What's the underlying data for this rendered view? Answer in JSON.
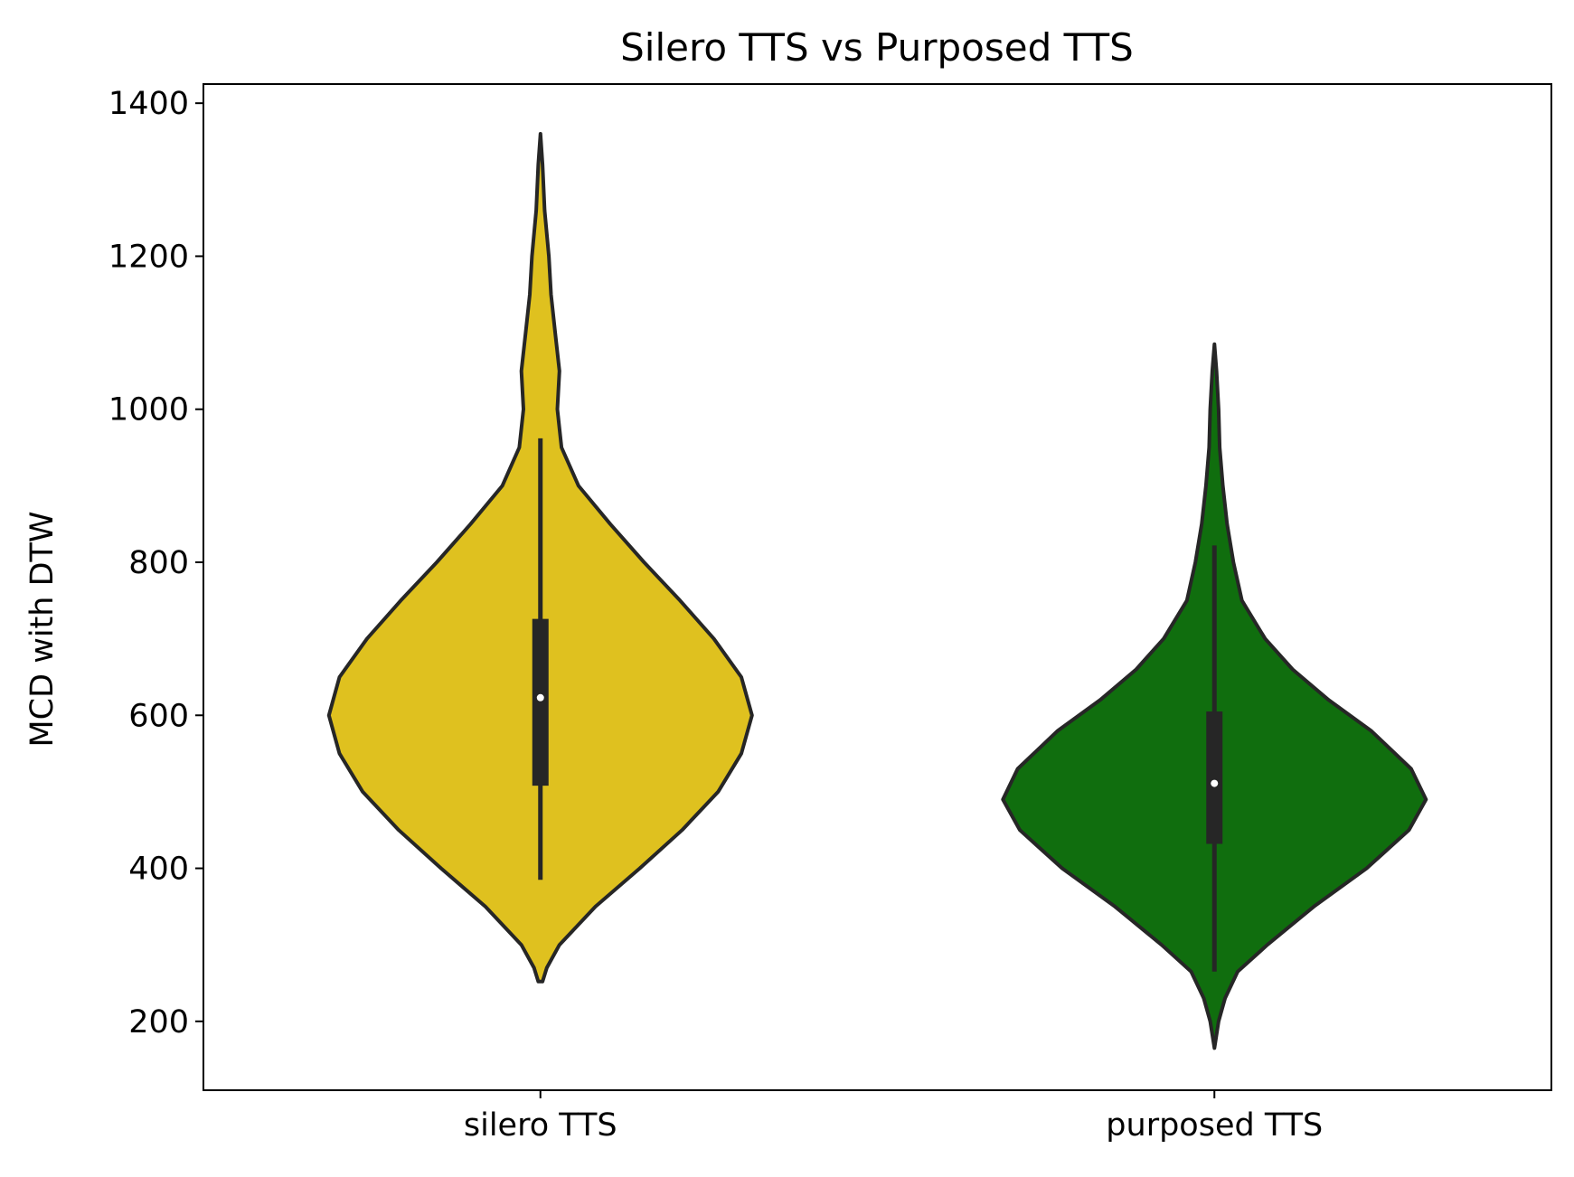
{
  "chart_data": {
    "type": "violin",
    "title": "Silero TTS vs Purposed TTS",
    "xlabel": "",
    "ylabel": "MCD with DTW",
    "ylim": [
      110,
      1425
    ],
    "yticks": [
      "200",
      "400",
      "600",
      "800",
      "1000",
      "1200",
      "1400"
    ],
    "categories": [
      "silero TTS",
      "purposed TTS"
    ],
    "grid": false,
    "legend": "none",
    "series": [
      {
        "category": "silero TTS",
        "color": "#dfc11f",
        "min": 252,
        "max": 1360,
        "whisker_low": 385,
        "whisker_high": 962,
        "q1": 508,
        "median": 623,
        "q3": 726,
        "density": [
          [
            252,
            0.01
          ],
          [
            270,
            0.03
          ],
          [
            300,
            0.09
          ],
          [
            350,
            0.26
          ],
          [
            400,
            0.47
          ],
          [
            450,
            0.67
          ],
          [
            500,
            0.84
          ],
          [
            550,
            0.95
          ],
          [
            600,
            1.0
          ],
          [
            650,
            0.95
          ],
          [
            700,
            0.82
          ],
          [
            750,
            0.66
          ],
          [
            800,
            0.49
          ],
          [
            850,
            0.33
          ],
          [
            900,
            0.18
          ],
          [
            950,
            0.1
          ],
          [
            1000,
            0.08
          ],
          [
            1050,
            0.09
          ],
          [
            1100,
            0.07
          ],
          [
            1150,
            0.05
          ],
          [
            1200,
            0.04
          ],
          [
            1260,
            0.02
          ],
          [
            1320,
            0.01
          ],
          [
            1360,
            0.0
          ]
        ]
      },
      {
        "category": "purposed TTS",
        "color": "#106e0e",
        "min": 165,
        "max": 1085,
        "whisker_low": 265,
        "whisker_high": 822,
        "q1": 432,
        "median": 511,
        "q3": 605,
        "density": [
          [
            165,
            0.0
          ],
          [
            200,
            0.02
          ],
          [
            230,
            0.05
          ],
          [
            265,
            0.11
          ],
          [
            300,
            0.25
          ],
          [
            350,
            0.47
          ],
          [
            400,
            0.72
          ],
          [
            450,
            0.92
          ],
          [
            490,
            1.0
          ],
          [
            530,
            0.93
          ],
          [
            580,
            0.74
          ],
          [
            620,
            0.54
          ],
          [
            660,
            0.37
          ],
          [
            700,
            0.24
          ],
          [
            750,
            0.13
          ],
          [
            800,
            0.09
          ],
          [
            850,
            0.06
          ],
          [
            900,
            0.04
          ],
          [
            950,
            0.025
          ],
          [
            1000,
            0.02
          ],
          [
            1050,
            0.01
          ],
          [
            1085,
            0.0
          ]
        ]
      }
    ]
  }
}
